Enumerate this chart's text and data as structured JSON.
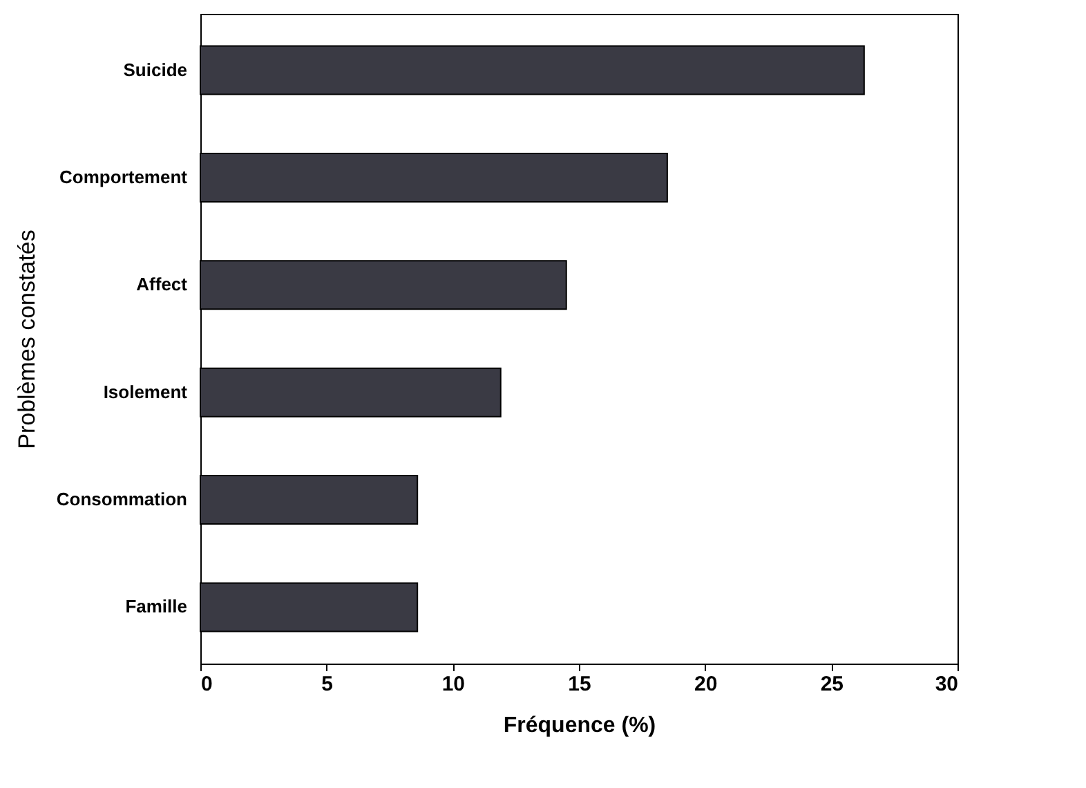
{
  "chart_data": {
    "type": "bar",
    "orientation": "horizontal",
    "xlabel": "Fréquence (%)",
    "ylabel": "Problèmes constatés",
    "categories": [
      "Suicide",
      "Comportement",
      "Affect",
      "Isolement",
      "Consommation",
      "Famille"
    ],
    "values": [
      26.3,
      18.5,
      14.5,
      11.9,
      8.6,
      8.6
    ],
    "color": "#3a3a44",
    "xlim": [
      0,
      30
    ],
    "xticks": [
      0,
      5,
      10,
      15,
      20,
      25,
      30
    ],
    "grid": false
  }
}
